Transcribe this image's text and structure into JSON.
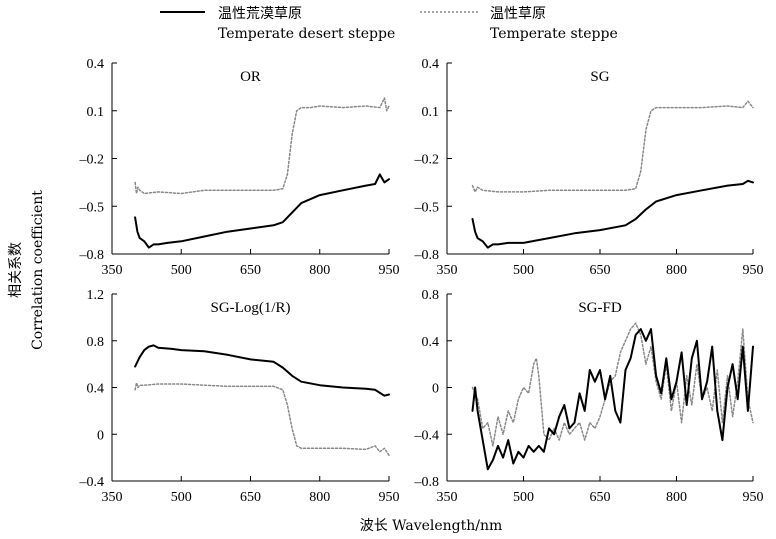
{
  "legend": {
    "items": [
      {
        "cn": "温性荒漠草原",
        "en": "Temperate desert steppe",
        "style": "solid",
        "color": "#000000"
      },
      {
        "cn": "温性草原",
        "en": "Temperate steppe",
        "style": "dotted",
        "color": "#888888"
      }
    ]
  },
  "axis_labels": {
    "x": "波长 Wavelength/nm",
    "y_cn": "相关系数",
    "y_en": "Correlation coefficient"
  },
  "chart_data": [
    {
      "type": "line",
      "title": "OR",
      "xlim": [
        350,
        950
      ],
      "ylim": [
        -0.8,
        0.4
      ],
      "xticks": [
        350,
        500,
        650,
        800,
        950
      ],
      "yticks": [
        0.4,
        0.1,
        -0.2,
        -0.5,
        -0.8
      ],
      "ytick_labels": [
        "0.4",
        "0.1",
        "–0.2",
        "–0.5",
        "–0.8"
      ],
      "series": [
        {
          "name": "温性荒漠草原",
          "x": [
            400,
            405,
            410,
            420,
            430,
            440,
            450,
            470,
            500,
            550,
            600,
            650,
            700,
            720,
            740,
            760,
            800,
            850,
            900,
            920,
            930,
            940,
            950
          ],
          "values": [
            -0.57,
            -0.66,
            -0.7,
            -0.72,
            -0.76,
            -0.74,
            -0.74,
            -0.73,
            -0.72,
            -0.69,
            -0.66,
            -0.64,
            -0.62,
            -0.6,
            -0.54,
            -0.48,
            -0.43,
            -0.4,
            -0.37,
            -0.36,
            -0.3,
            -0.35,
            -0.33
          ]
        },
        {
          "name": "温性草原",
          "x": [
            400,
            403,
            406,
            410,
            420,
            450,
            500,
            550,
            600,
            650,
            700,
            720,
            730,
            740,
            750,
            760,
            780,
            800,
            850,
            900,
            930,
            940,
            945,
            950
          ],
          "values": [
            -0.35,
            -0.42,
            -0.38,
            -0.4,
            -0.42,
            -0.41,
            -0.42,
            -0.4,
            -0.4,
            -0.4,
            -0.4,
            -0.39,
            -0.3,
            -0.05,
            0.1,
            0.12,
            0.12,
            0.13,
            0.12,
            0.13,
            0.12,
            0.18,
            0.1,
            0.13
          ]
        }
      ]
    },
    {
      "type": "line",
      "title": "SG",
      "xlim": [
        350,
        950
      ],
      "ylim": [
        -0.8,
        0.4
      ],
      "xticks": [
        350,
        500,
        650,
        800,
        950
      ],
      "yticks": [
        0.4,
        0.1,
        -0.2,
        -0.5,
        -0.8
      ],
      "ytick_labels": [
        "0.4",
        "0.1",
        "–0.2",
        "–0.5",
        "–0.8"
      ],
      "series": [
        {
          "name": "温性荒漠草原",
          "x": [
            400,
            405,
            410,
            420,
            430,
            440,
            450,
            470,
            500,
            550,
            600,
            650,
            700,
            720,
            740,
            760,
            800,
            850,
            900,
            930,
            940,
            950
          ],
          "values": [
            -0.58,
            -0.66,
            -0.7,
            -0.72,
            -0.76,
            -0.74,
            -0.74,
            -0.73,
            -0.73,
            -0.7,
            -0.67,
            -0.65,
            -0.62,
            -0.58,
            -0.52,
            -0.47,
            -0.43,
            -0.4,
            -0.37,
            -0.36,
            -0.34,
            -0.35
          ]
        },
        {
          "name": "温性草原",
          "x": [
            400,
            405,
            410,
            420,
            450,
            500,
            550,
            600,
            650,
            700,
            720,
            730,
            740,
            750,
            760,
            780,
            800,
            850,
            900,
            930,
            940,
            950
          ],
          "values": [
            -0.37,
            -0.41,
            -0.38,
            -0.4,
            -0.41,
            -0.41,
            -0.4,
            -0.4,
            -0.4,
            -0.4,
            -0.39,
            -0.28,
            -0.02,
            0.1,
            0.12,
            0.12,
            0.12,
            0.12,
            0.13,
            0.12,
            0.16,
            0.12
          ]
        }
      ]
    },
    {
      "type": "line",
      "title": "SG-Log(1/R)",
      "xlim": [
        350,
        950
      ],
      "ylim": [
        -0.4,
        1.2
      ],
      "xticks": [
        350,
        500,
        650,
        800,
        950
      ],
      "yticks": [
        1.2,
        0.8,
        0.4,
        0,
        -0.4
      ],
      "ytick_labels": [
        "1.2",
        "0.8",
        "0.4",
        "0",
        "–0.4"
      ],
      "series": [
        {
          "name": "温性荒漠草原",
          "x": [
            400,
            405,
            410,
            420,
            430,
            440,
            450,
            480,
            500,
            550,
            600,
            650,
            700,
            720,
            740,
            760,
            800,
            850,
            900,
            920,
            940,
            950
          ],
          "values": [
            0.58,
            0.62,
            0.66,
            0.72,
            0.75,
            0.76,
            0.74,
            0.73,
            0.72,
            0.71,
            0.68,
            0.64,
            0.62,
            0.57,
            0.5,
            0.45,
            0.42,
            0.4,
            0.39,
            0.38,
            0.33,
            0.34
          ]
        },
        {
          "name": "温性草原",
          "x": [
            400,
            403,
            406,
            410,
            420,
            450,
            500,
            550,
            600,
            650,
            700,
            720,
            730,
            740,
            750,
            760,
            780,
            800,
            850,
            900,
            920,
            930,
            940,
            950
          ],
          "values": [
            0.38,
            0.44,
            0.4,
            0.42,
            0.42,
            0.43,
            0.43,
            0.42,
            0.41,
            0.41,
            0.41,
            0.38,
            0.25,
            0.05,
            -0.1,
            -0.12,
            -0.12,
            -0.12,
            -0.12,
            -0.13,
            -0.1,
            -0.15,
            -0.12,
            -0.18
          ]
        }
      ]
    },
    {
      "type": "line",
      "title": "SG-FD",
      "xlim": [
        350,
        950
      ],
      "ylim": [
        -0.8,
        0.8
      ],
      "xticks": [
        350,
        500,
        650,
        800,
        950
      ],
      "yticks": [
        0.8,
        0.4,
        0,
        -0.4,
        -0.8
      ],
      "ytick_labels": [
        "0.8",
        "0.4",
        "0",
        "–0.4",
        "–0.8"
      ],
      "series": [
        {
          "name": "温性荒漠草原",
          "x": [
            400,
            405,
            410,
            420,
            430,
            440,
            450,
            460,
            470,
            480,
            490,
            500,
            510,
            520,
            530,
            540,
            550,
            560,
            570,
            580,
            590,
            600,
            610,
            620,
            630,
            640,
            650,
            660,
            670,
            680,
            690,
            700,
            710,
            720,
            730,
            740,
            750,
            760,
            770,
            780,
            790,
            800,
            810,
            820,
            830,
            840,
            850,
            860,
            870,
            880,
            890,
            900,
            910,
            920,
            930,
            940,
            950
          ],
          "values": [
            -0.2,
            0.0,
            -0.2,
            -0.45,
            -0.7,
            -0.62,
            -0.5,
            -0.6,
            -0.45,
            -0.65,
            -0.55,
            -0.6,
            -0.5,
            -0.55,
            -0.5,
            -0.55,
            -0.35,
            -0.4,
            -0.25,
            -0.15,
            -0.35,
            -0.3,
            -0.05,
            -0.2,
            0.15,
            0.05,
            0.15,
            -0.1,
            0.1,
            -0.2,
            -0.3,
            0.15,
            0.25,
            0.45,
            0.5,
            0.4,
            0.5,
            0.1,
            -0.05,
            0.25,
            -0.1,
            0.05,
            0.3,
            -0.15,
            0.25,
            0.4,
            -0.1,
            0.05,
            0.35,
            -0.2,
            -0.45,
            0.0,
            0.2,
            -0.1,
            0.35,
            -0.2,
            0.35
          ]
        },
        {
          "name": "温性草原",
          "x": [
            400,
            410,
            420,
            430,
            440,
            450,
            460,
            470,
            480,
            490,
            500,
            510,
            520,
            525,
            530,
            540,
            550,
            560,
            570,
            580,
            590,
            600,
            610,
            620,
            630,
            640,
            650,
            660,
            670,
            680,
            690,
            700,
            710,
            720,
            730,
            740,
            750,
            760,
            770,
            780,
            790,
            800,
            810,
            820,
            830,
            840,
            850,
            860,
            870,
            880,
            890,
            900,
            910,
            920,
            930,
            940,
            950
          ],
          "values": [
            0.0,
            -0.1,
            -0.35,
            -0.3,
            -0.5,
            -0.25,
            -0.4,
            -0.2,
            -0.3,
            -0.1,
            0.0,
            -0.05,
            0.2,
            0.25,
            0.1,
            -0.4,
            -0.45,
            -0.35,
            -0.45,
            -0.3,
            -0.4,
            -0.35,
            -0.3,
            -0.45,
            -0.3,
            -0.35,
            -0.25,
            -0.1,
            0.05,
            0.1,
            0.3,
            0.4,
            0.5,
            0.55,
            0.45,
            0.2,
            0.35,
            0.05,
            -0.1,
            0.2,
            -0.2,
            0.05,
            -0.3,
            0.1,
            -0.15,
            0.2,
            -0.1,
            0.0,
            -0.2,
            0.15,
            -0.3,
            0.1,
            -0.25,
            0.05,
            0.5,
            -0.1,
            -0.3
          ]
        }
      ]
    }
  ]
}
